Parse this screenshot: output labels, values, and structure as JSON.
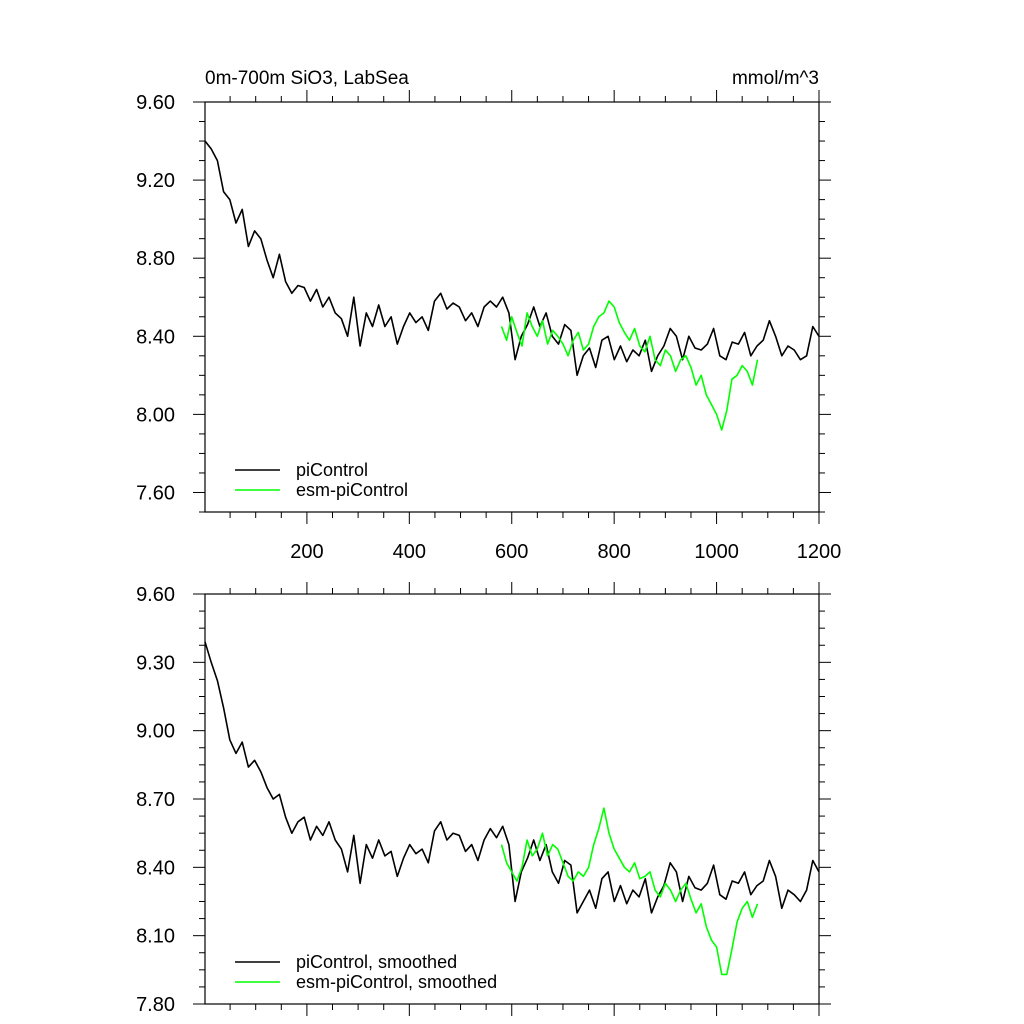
{
  "colors": {
    "picontrol": "#000000",
    "esm_picontrol": "#00ff00"
  },
  "chart_data": [
    {
      "type": "line",
      "title": "0m-700m SiO3, LabSea",
      "units": "mmol/m^3",
      "xlim": [
        1,
        1200
      ],
      "ylim": [
        7.5,
        9.6
      ],
      "yticks": [
        7.6,
        8.0,
        8.4,
        8.8,
        9.2,
        9.6
      ],
      "ytick_labels": [
        "7.60",
        "8.00",
        "8.40",
        "8.80",
        "9.20",
        "9.60"
      ],
      "xticks": [
        200,
        400,
        600,
        800,
        1000,
        1200
      ],
      "xtick_labels": [
        "200",
        "400",
        "600",
        "800",
        "1000",
        "1200"
      ],
      "legend_position": "bottom-left",
      "series": [
        {
          "name": "piControl",
          "color": "#000000",
          "x_start": 1,
          "x_end": 1200,
          "values": [
            9.4,
            9.36,
            9.3,
            9.14,
            9.1,
            8.98,
            9.05,
            8.86,
            8.94,
            8.9,
            8.79,
            8.7,
            8.82,
            8.68,
            8.62,
            8.66,
            8.65,
            8.58,
            8.64,
            8.55,
            8.6,
            8.52,
            8.49,
            8.4,
            8.6,
            8.35,
            8.52,
            8.45,
            8.56,
            8.45,
            8.5,
            8.36,
            8.45,
            8.52,
            8.47,
            8.5,
            8.43,
            8.58,
            8.62,
            8.54,
            8.57,
            8.55,
            8.48,
            8.52,
            8.45,
            8.55,
            8.58,
            8.55,
            8.6,
            8.52,
            8.28,
            8.4,
            8.46,
            8.55,
            8.45,
            8.52,
            8.4,
            8.36,
            8.46,
            8.43,
            8.2,
            8.3,
            8.34,
            8.24,
            8.38,
            8.4,
            8.28,
            8.35,
            8.27,
            8.33,
            8.3,
            8.38,
            8.22,
            8.3,
            8.35,
            8.44,
            8.4,
            8.28,
            8.4,
            8.34,
            8.33,
            8.36,
            8.44,
            8.3,
            8.28,
            8.37,
            8.36,
            8.42,
            8.3,
            8.35,
            8.38,
            8.48,
            8.4,
            8.3,
            8.35,
            8.33,
            8.28,
            8.3,
            8.45,
            8.4
          ]
        },
        {
          "name": "esm-piControl",
          "color": "#00ff00",
          "x_start": 580,
          "x_end": 1080,
          "values": [
            8.45,
            8.38,
            8.5,
            8.42,
            8.35,
            8.52,
            8.45,
            8.4,
            8.48,
            8.36,
            8.43,
            8.4,
            8.36,
            8.3,
            8.38,
            8.42,
            8.33,
            8.36,
            8.45,
            8.5,
            8.52,
            8.58,
            8.55,
            8.47,
            8.42,
            8.38,
            8.44,
            8.35,
            8.32,
            8.4,
            8.28,
            8.25,
            8.33,
            8.3,
            8.22,
            8.28,
            8.3,
            8.24,
            8.15,
            8.2,
            8.1,
            8.05,
            8.0,
            7.92,
            8.02,
            8.18,
            8.2,
            8.25,
            8.22,
            8.15,
            8.28
          ]
        }
      ]
    },
    {
      "type": "line",
      "xlim": [
        1,
        1200
      ],
      "ylim": [
        7.8,
        9.6
      ],
      "yticks": [
        7.8,
        8.1,
        8.4,
        8.7,
        9.0,
        9.3,
        9.6
      ],
      "ytick_labels": [
        "7.80",
        "8.10",
        "8.40",
        "8.70",
        "9.00",
        "9.30",
        "9.60"
      ],
      "xticks": [
        200,
        400,
        600,
        800,
        1000,
        1200
      ],
      "legend_position": "bottom-left",
      "series": [
        {
          "name": "piControl, smoothed",
          "color": "#000000",
          "x_start": 1,
          "x_end": 1200,
          "values": [
            9.39,
            9.3,
            9.22,
            9.1,
            8.96,
            8.9,
            8.95,
            8.84,
            8.87,
            8.82,
            8.75,
            8.7,
            8.72,
            8.62,
            8.55,
            8.6,
            8.62,
            8.52,
            8.58,
            8.54,
            8.6,
            8.52,
            8.48,
            8.38,
            8.54,
            8.33,
            8.5,
            8.44,
            8.52,
            8.45,
            8.47,
            8.36,
            8.44,
            8.5,
            8.46,
            8.48,
            8.42,
            8.56,
            8.6,
            8.52,
            8.55,
            8.54,
            8.47,
            8.5,
            8.43,
            8.52,
            8.57,
            8.53,
            8.58,
            8.5,
            8.25,
            8.38,
            8.44,
            8.52,
            8.43,
            8.5,
            8.38,
            8.33,
            8.43,
            8.41,
            8.2,
            8.25,
            8.3,
            8.22,
            8.35,
            8.38,
            8.25,
            8.32,
            8.24,
            8.3,
            8.27,
            8.35,
            8.2,
            8.27,
            8.32,
            8.42,
            8.38,
            8.25,
            8.36,
            8.31,
            8.3,
            8.33,
            8.41,
            8.28,
            8.26,
            8.34,
            8.33,
            8.38,
            8.28,
            8.32,
            8.34,
            8.43,
            8.36,
            8.22,
            8.3,
            8.28,
            8.25,
            8.3,
            8.43,
            8.38
          ]
        },
        {
          "name": "esm-piControl, smoothed",
          "color": "#00ff00",
          "x_start": 580,
          "x_end": 1080,
          "values": [
            8.5,
            8.42,
            8.38,
            8.34,
            8.4,
            8.52,
            8.45,
            8.48,
            8.55,
            8.45,
            8.5,
            8.48,
            8.42,
            8.36,
            8.34,
            8.38,
            8.36,
            8.4,
            8.5,
            8.57,
            8.66,
            8.55,
            8.48,
            8.44,
            8.4,
            8.38,
            8.42,
            8.35,
            8.36,
            8.38,
            8.3,
            8.27,
            8.33,
            8.3,
            8.25,
            8.3,
            8.33,
            8.26,
            8.2,
            8.24,
            8.14,
            8.08,
            8.05,
            7.93,
            7.93,
            8.04,
            8.16,
            8.22,
            8.25,
            8.18,
            8.24
          ]
        }
      ]
    }
  ]
}
